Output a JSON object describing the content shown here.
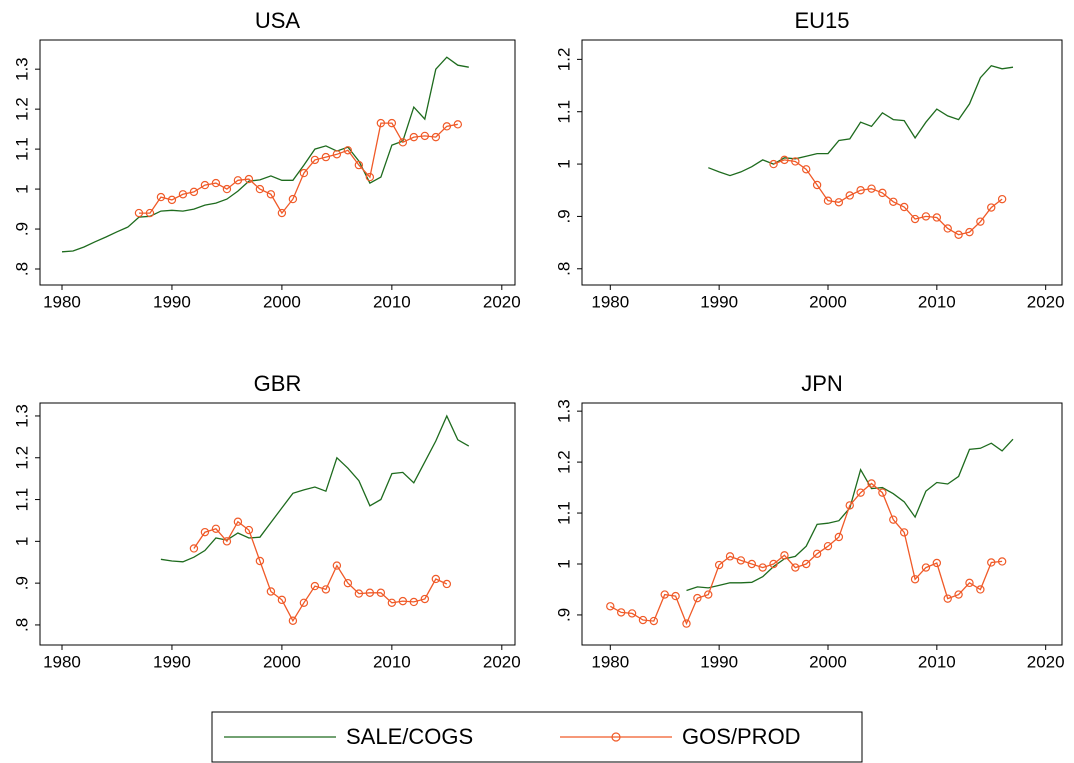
{
  "legend": "bottom",
  "chart_data": [
    {
      "type": "line",
      "title": "USA",
      "xlim": [
        1978,
        2021.2
      ],
      "ylim": [
        0.76,
        1.373
      ],
      "xticks": [
        1980,
        1990,
        2000,
        2010,
        2020
      ],
      "yticks": [
        {
          "value": 0.8,
          "label": ".8"
        },
        {
          "value": 0.9,
          "label": ".9"
        },
        1,
        1.1,
        1.2,
        1.3
      ],
      "series": [
        {
          "name": "SALE/COGS",
          "color": "#1e6b1e",
          "x": [
            1980,
            1981,
            1982,
            1983,
            1984,
            1985,
            1986,
            1987,
            1988,
            1989,
            1990,
            1991,
            1992,
            1993,
            1994,
            1995,
            1996,
            1997,
            1998,
            1999,
            2000,
            2001,
            2002,
            2003,
            2004,
            2005,
            2006,
            2007,
            2008,
            2009,
            2010,
            2011,
            2012,
            2013,
            2014,
            2015,
            2016,
            2017
          ],
          "values": [
            0.843,
            0.845,
            0.855,
            0.868,
            0.88,
            0.893,
            0.905,
            0.93,
            0.932,
            0.945,
            0.947,
            0.945,
            0.95,
            0.96,
            0.965,
            0.975,
            0.995,
            1.02,
            1.023,
            1.033,
            1.022,
            1.022,
            1.06,
            1.1,
            1.108,
            1.095,
            1.105,
            1.07,
            1.015,
            1.03,
            1.11,
            1.12,
            1.205,
            1.175,
            1.3,
            1.33,
            1.31,
            1.305
          ]
        },
        {
          "name": "GOS/PROD",
          "color": "#f05a28",
          "marker": "circle",
          "x": [
            1987,
            1988,
            1989,
            1990,
            1991,
            1992,
            1993,
            1994,
            1995,
            1996,
            1997,
            1998,
            1999,
            2000,
            2001,
            2002,
            2003,
            2004,
            2005,
            2006,
            2007,
            2008,
            2009,
            2010,
            2011,
            2012,
            2013,
            2014,
            2015,
            2016
          ],
          "values": [
            0.94,
            0.94,
            0.98,
            0.973,
            0.987,
            0.993,
            1.01,
            1.015,
            1.0,
            1.022,
            1.025,
            1.0,
            0.987,
            0.94,
            0.975,
            1.04,
            1.073,
            1.08,
            1.087,
            1.097,
            1.06,
            1.03,
            1.165,
            1.165,
            1.117,
            1.13,
            1.133,
            1.13,
            1.157,
            1.162
          ]
        }
      ]
    },
    {
      "type": "line",
      "title": "EU15",
      "xlim": [
        1977.4,
        2021.5
      ],
      "ylim": [
        0.769,
        1.237
      ],
      "xticks": [
        1980,
        1990,
        2000,
        2010,
        2020
      ],
      "yticks": [
        {
          "value": 0.8,
          "label": ".8"
        },
        {
          "value": 0.9,
          "label": ".9"
        },
        1,
        1.1,
        1.2
      ],
      "series": [
        {
          "name": "SALE/COGS",
          "color": "#1e6b1e",
          "x": [
            1989,
            1990,
            1991,
            1992,
            1993,
            1994,
            1995,
            1996,
            1997,
            1998,
            1999,
            2000,
            2001,
            2002,
            2003,
            2004,
            2005,
            2006,
            2007,
            2008,
            2009,
            2010,
            2011,
            2012,
            2013,
            2014,
            2015,
            2016,
            2017
          ],
          "values": [
            0.993,
            0.985,
            0.978,
            0.985,
            0.995,
            1.008,
            1.0,
            1.012,
            1.01,
            1.015,
            1.02,
            1.02,
            1.045,
            1.048,
            1.08,
            1.072,
            1.098,
            1.085,
            1.083,
            1.05,
            1.08,
            1.105,
            1.092,
            1.085,
            1.115,
            1.165,
            1.188,
            1.182,
            1.185
          ]
        },
        {
          "name": "GOS/PROD",
          "color": "#f05a28",
          "marker": "circle",
          "x": [
            1995,
            1996,
            1997,
            1998,
            1999,
            2000,
            2001,
            2002,
            2003,
            2004,
            2005,
            2006,
            2007,
            2008,
            2009,
            2010,
            2011,
            2012,
            2013,
            2014,
            2015,
            2016
          ],
          "values": [
            1.0,
            1.008,
            1.005,
            0.99,
            0.96,
            0.93,
            0.927,
            0.94,
            0.95,
            0.953,
            0.945,
            0.928,
            0.918,
            0.895,
            0.9,
            0.898,
            0.877,
            0.865,
            0.87,
            0.89,
            0.917,
            0.933
          ]
        }
      ]
    },
    {
      "type": "line",
      "title": "GBR",
      "xlim": [
        1978,
        2021.2
      ],
      "ylim": [
        0.752,
        1.331
      ],
      "xticks": [
        1980,
        1990,
        2000,
        2010,
        2020
      ],
      "yticks": [
        {
          "value": 0.8,
          "label": ".8"
        },
        {
          "value": 0.9,
          "label": ".9"
        },
        1,
        1.1,
        1.2,
        1.3
      ],
      "series": [
        {
          "name": "SALE/COGS",
          "color": "#1e6b1e",
          "x": [
            1989,
            1990,
            1991,
            1992,
            1993,
            1994,
            1995,
            1996,
            1997,
            1998,
            1999,
            2000,
            2001,
            2002,
            2003,
            2004,
            2005,
            2006,
            2007,
            2008,
            2009,
            2010,
            2011,
            2012,
            2013,
            2014,
            2015,
            2016,
            2017
          ],
          "values": [
            0.957,
            0.953,
            0.951,
            0.962,
            0.978,
            1.008,
            1.003,
            1.02,
            1.008,
            1.01,
            1.045,
            1.08,
            1.115,
            1.123,
            1.13,
            1.12,
            1.2,
            1.175,
            1.145,
            1.085,
            1.1,
            1.162,
            1.165,
            1.14,
            1.19,
            1.24,
            1.3,
            1.243,
            1.228
          ]
        },
        {
          "name": "GOS/PROD",
          "color": "#f05a28",
          "marker": "circle",
          "x": [
            1992,
            1993,
            1994,
            1995,
            1996,
            1997,
            1998,
            1999,
            2000,
            2001,
            2002,
            2003,
            2004,
            2005,
            2006,
            2007,
            2008,
            2009,
            2010,
            2011,
            2012,
            2013,
            2014,
            2015
          ],
          "values": [
            0.983,
            1.022,
            1.03,
            1.0,
            1.047,
            1.027,
            0.953,
            0.88,
            0.86,
            0.81,
            0.853,
            0.893,
            0.885,
            0.942,
            0.9,
            0.875,
            0.877,
            0.877,
            0.853,
            0.857,
            0.855,
            0.862,
            0.91,
            0.898
          ]
        }
      ]
    },
    {
      "type": "line",
      "title": "JPN",
      "xlim": [
        1977.4,
        2021.5
      ],
      "ylim": [
        0.841,
        1.316
      ],
      "xticks": [
        1980,
        1990,
        2000,
        2010,
        2020
      ],
      "yticks": [
        {
          "value": 0.9,
          "label": ".9"
        },
        1,
        1.1,
        1.2,
        1.3
      ],
      "series": [
        {
          "name": "SALE/COGS",
          "color": "#1e6b1e",
          "x": [
            1987,
            1988,
            1989,
            1990,
            1991,
            1992,
            1993,
            1994,
            1995,
            1996,
            1997,
            1998,
            1999,
            2000,
            2001,
            2002,
            2003,
            2004,
            2005,
            2006,
            2007,
            2008,
            2009,
            2010,
            2011,
            2012,
            2013,
            2014,
            2015,
            2016,
            2017
          ],
          "values": [
            0.948,
            0.955,
            0.953,
            0.958,
            0.963,
            0.963,
            0.964,
            0.975,
            0.995,
            1.01,
            1.015,
            1.035,
            1.078,
            1.08,
            1.085,
            1.11,
            1.185,
            1.148,
            1.15,
            1.138,
            1.122,
            1.092,
            1.143,
            1.16,
            1.157,
            1.172,
            1.225,
            1.227,
            1.237,
            1.222,
            1.245
          ]
        },
        {
          "name": "GOS/PROD",
          "color": "#f05a28",
          "marker": "circle",
          "x": [
            1980,
            1981,
            1982,
            1983,
            1984,
            1985,
            1986,
            1987,
            1988,
            1989,
            1990,
            1991,
            1992,
            1993,
            1994,
            1995,
            1996,
            1997,
            1998,
            1999,
            2000,
            2001,
            2002,
            2003,
            2004,
            2005,
            2006,
            2007,
            2008,
            2009,
            2010,
            2011,
            2012,
            2013,
            2014,
            2015,
            2016
          ],
          "values": [
            0.917,
            0.905,
            0.903,
            0.89,
            0.888,
            0.94,
            0.937,
            0.883,
            0.933,
            0.94,
            0.998,
            1.015,
            1.007,
            1.0,
            0.993,
            1.0,
            1.017,
            0.993,
            1.0,
            1.02,
            1.035,
            1.053,
            1.115,
            1.14,
            1.158,
            1.14,
            1.087,
            1.062,
            0.97,
            0.993,
            1.002,
            0.932,
            0.94,
            0.963,
            0.95,
            1.003,
            1.005
          ]
        }
      ]
    }
  ]
}
